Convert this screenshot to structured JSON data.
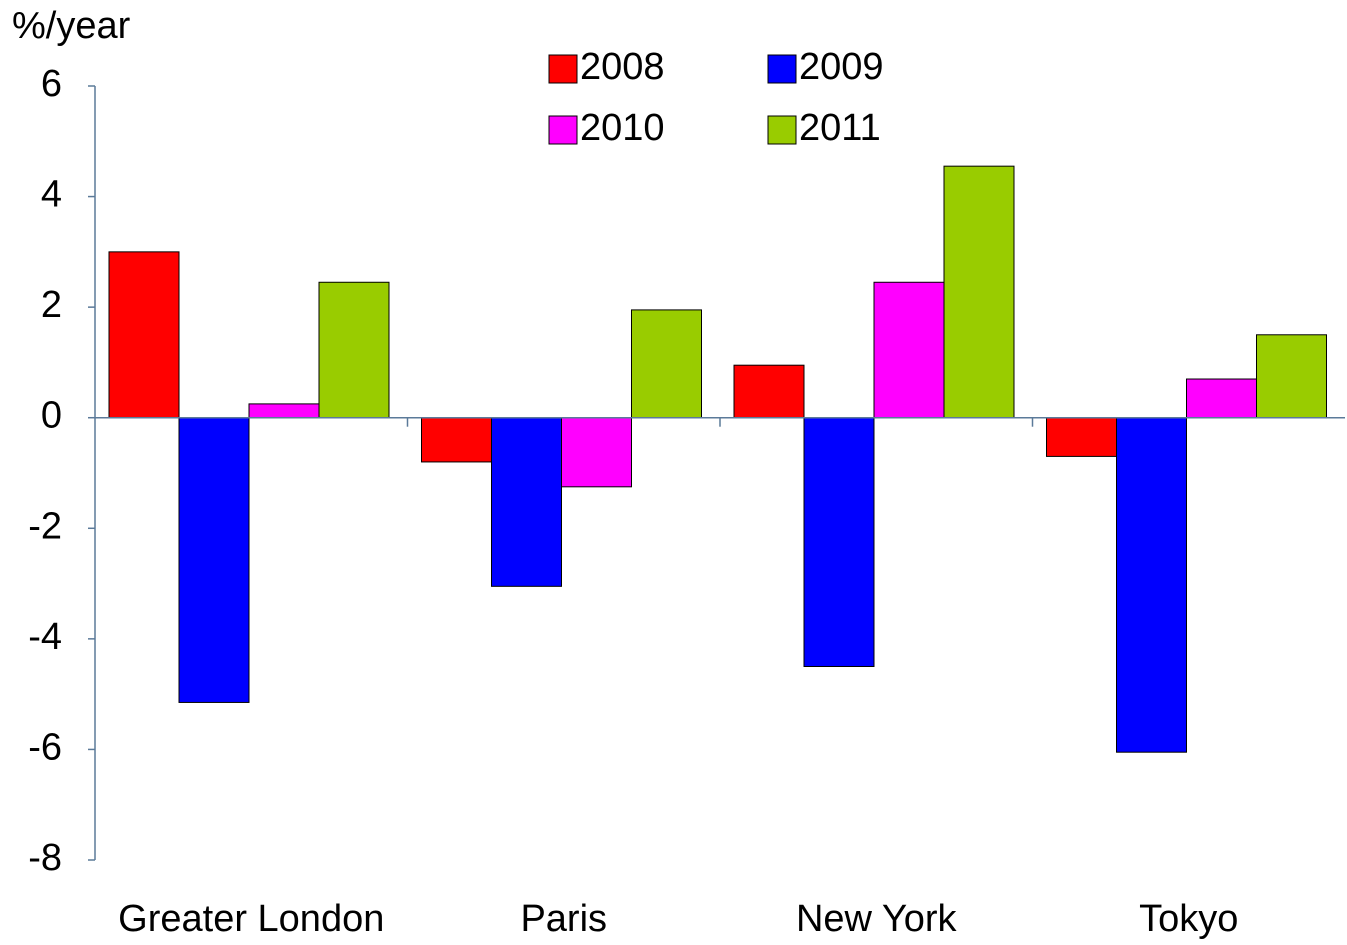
{
  "chart_data": {
    "type": "bar",
    "y_axis_label": "%/year",
    "categories": [
      "Greater London",
      "Paris",
      "New York",
      "Tokyo"
    ],
    "series": [
      {
        "name": "2008",
        "color": "#ff0000",
        "values": [
          3.0,
          -0.8,
          0.95,
          -0.7
        ]
      },
      {
        "name": "2009",
        "color": "#0000ff",
        "values": [
          -5.15,
          -3.05,
          -4.5,
          -6.05
        ]
      },
      {
        "name": "2010",
        "color": "#ff00ff",
        "values": [
          0.25,
          -1.25,
          2.45,
          0.7
        ]
      },
      {
        "name": "2011",
        "color": "#99cc00",
        "values": [
          2.45,
          1.95,
          4.55,
          1.5
        ]
      }
    ],
    "ylim": [
      -8,
      6
    ],
    "yticks": [
      -8,
      -6,
      -4,
      -2,
      0,
      2,
      4,
      6
    ],
    "grid": false
  }
}
